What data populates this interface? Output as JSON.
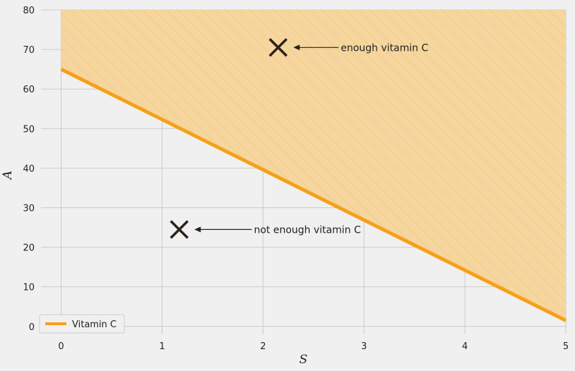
{
  "chart_data": {
    "type": "line",
    "xlabel": "S",
    "ylabel": "A",
    "xlim": [
      -0.2,
      5
    ],
    "ylim": [
      -2,
      80
    ],
    "xticks": [
      0,
      1,
      2,
      3,
      4,
      5
    ],
    "yticks": [
      0,
      10,
      20,
      30,
      40,
      50,
      60,
      70,
      80
    ],
    "grid": true,
    "series": [
      {
        "name": "Vitamin C",
        "color": "#f5a01a",
        "x": [
          0,
          5
        ],
        "y": [
          65,
          1.5
        ]
      }
    ],
    "shaded_region": {
      "description_color": "#f5d49a",
      "hatch": "diagonal",
      "bounded_below_by": "Vitamin C",
      "upper": 80
    },
    "markers": [
      {
        "x": 2.15,
        "y": 70.5,
        "symbol": "x"
      },
      {
        "x": 1.17,
        "y": 24.5,
        "symbol": "x"
      }
    ],
    "annotations": [
      {
        "text": "enough vitamin C",
        "text_x": 2.77,
        "text_y": 70.5,
        "arrow_to_x": 2.3,
        "arrow_to_y": 70.5
      },
      {
        "text": "not enough vitamin C",
        "text_x": 1.91,
        "text_y": 24.5,
        "arrow_to_x": 1.32,
        "arrow_to_y": 24.5
      }
    ],
    "legend": {
      "placement": "bottom-left",
      "entries": [
        "Vitamin C"
      ]
    }
  }
}
